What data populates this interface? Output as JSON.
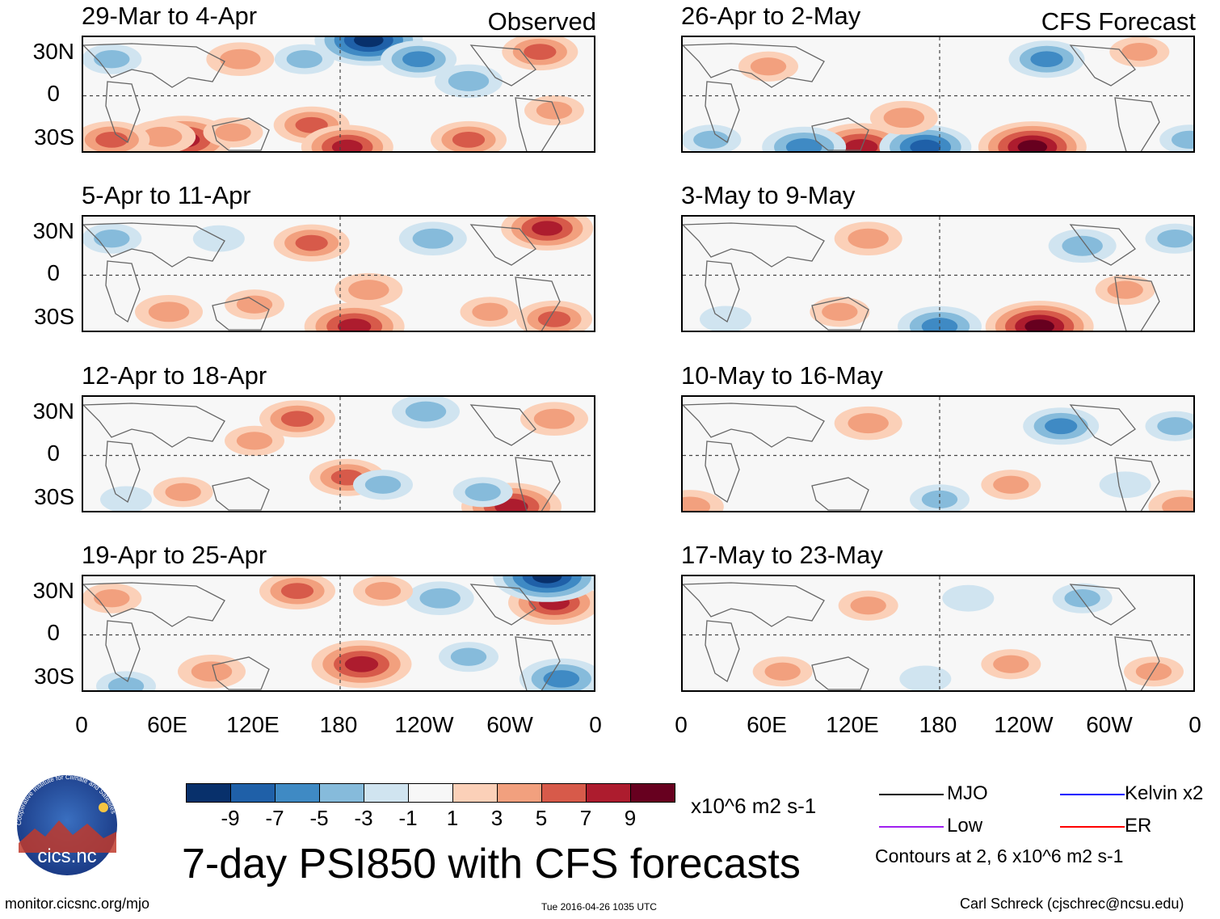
{
  "chart_data": {
    "type": "heatmap",
    "title": "7-day PSI850 with CFS forecasts",
    "variable": "PSI850",
    "units": "x10^6 m2 s-1",
    "colorbar": {
      "ticks": [
        "-9",
        "-7",
        "-5",
        "-3",
        "-1",
        "1",
        "3",
        "5",
        "7",
        "9"
      ],
      "colors": [
        "#08306b",
        "#1f60a8",
        "#3f8ac4",
        "#86bbdb",
        "#d0e4f0",
        "#f7f7f7",
        "#fbd0b8",
        "#f2a07e",
        "#d75a4a",
        "#ad1c2e",
        "#67001f"
      ]
    },
    "lat_ticks": [
      "30N",
      "0",
      "30S"
    ],
    "lon_ticks": [
      "0",
      "60E",
      "120E",
      "180",
      "120W",
      "60W",
      "0"
    ],
    "observed_header": "Observed",
    "forecast_header": "CFS Forecast",
    "observed_panels": [
      {
        "period": "29-Mar to 4-Apr",
        "blobs": [
          {
            "lon": 70,
            "lat": -30,
            "v": 8
          },
          {
            "lon": 55,
            "lat": -28,
            "v": 4
          },
          {
            "lon": 20,
            "lat": -30,
            "v": 5
          },
          {
            "lon": 105,
            "lat": -25,
            "v": 3
          },
          {
            "lon": 160,
            "lat": -20,
            "v": 5
          },
          {
            "lon": 185,
            "lat": -35,
            "v": 7
          },
          {
            "lon": 200,
            "lat": 38,
            "v": -9
          },
          {
            "lon": 235,
            "lat": 25,
            "v": -5
          },
          {
            "lon": 270,
            "lat": 10,
            "v": -4
          },
          {
            "lon": 320,
            "lat": 30,
            "v": 5
          },
          {
            "lon": 330,
            "lat": -10,
            "v": 3
          },
          {
            "lon": 270,
            "lat": -30,
            "v": 5
          },
          {
            "lon": 20,
            "lat": 25,
            "v": -3
          },
          {
            "lon": 110,
            "lat": 25,
            "v": 4
          },
          {
            "lon": 155,
            "lat": 25,
            "v": -3
          }
        ]
      },
      {
        "period": "5-Apr to 11-Apr",
        "blobs": [
          {
            "lon": 190,
            "lat": -35,
            "v": 8
          },
          {
            "lon": 160,
            "lat": 22,
            "v": 5
          },
          {
            "lon": 325,
            "lat": 32,
            "v": 7
          },
          {
            "lon": 330,
            "lat": -30,
            "v": 5
          },
          {
            "lon": 60,
            "lat": -25,
            "v": 4
          },
          {
            "lon": 120,
            "lat": -20,
            "v": 3
          },
          {
            "lon": 245,
            "lat": 25,
            "v": -4
          },
          {
            "lon": 20,
            "lat": 25,
            "v": -3
          },
          {
            "lon": 95,
            "lat": 25,
            "v": -2
          },
          {
            "lon": 200,
            "lat": -10,
            "v": 4
          },
          {
            "lon": 285,
            "lat": -25,
            "v": 3
          }
        ]
      },
      {
        "period": "12-Apr to 18-Apr",
        "blobs": [
          {
            "lon": 150,
            "lat": 25,
            "v": 5
          },
          {
            "lon": 185,
            "lat": -15,
            "v": 5
          },
          {
            "lon": 300,
            "lat": -35,
            "v": 8
          },
          {
            "lon": 240,
            "lat": 30,
            "v": -4
          },
          {
            "lon": 210,
            "lat": -20,
            "v": -3
          },
          {
            "lon": 330,
            "lat": 25,
            "v": 4
          },
          {
            "lon": 70,
            "lat": -25,
            "v": 3
          },
          {
            "lon": 280,
            "lat": -25,
            "v": -3
          },
          {
            "lon": 30,
            "lat": -30,
            "v": -2
          },
          {
            "lon": 120,
            "lat": 10,
            "v": 3
          }
        ]
      },
      {
        "period": "19-Apr to 25-Apr",
        "blobs": [
          {
            "lon": 150,
            "lat": 30,
            "v": 5
          },
          {
            "lon": 195,
            "lat": -20,
            "v": 8
          },
          {
            "lon": 330,
            "lat": 22,
            "v": 7
          },
          {
            "lon": 325,
            "lat": 40,
            "v": -9
          },
          {
            "lon": 335,
            "lat": -30,
            "v": -6
          },
          {
            "lon": 250,
            "lat": 25,
            "v": -4
          },
          {
            "lon": 30,
            "lat": -35,
            "v": -3
          },
          {
            "lon": 90,
            "lat": -25,
            "v": 4
          },
          {
            "lon": 210,
            "lat": 30,
            "v": 3
          },
          {
            "lon": 270,
            "lat": -15,
            "v": -3
          },
          {
            "lon": 20,
            "lat": 25,
            "v": 3
          }
        ]
      }
    ],
    "forecast_panels": [
      {
        "period": "26-Apr to 2-May",
        "blobs": [
          {
            "lon": 125,
            "lat": -35,
            "v": 8
          },
          {
            "lon": 245,
            "lat": -35,
            "v": 9
          },
          {
            "lon": 85,
            "lat": -35,
            "v": -6
          },
          {
            "lon": 170,
            "lat": -35,
            "v": -7
          },
          {
            "lon": 255,
            "lat": 25,
            "v": -5
          },
          {
            "lon": 20,
            "lat": -30,
            "v": -3
          },
          {
            "lon": 155,
            "lat": -15,
            "v": 4
          },
          {
            "lon": 320,
            "lat": 30,
            "v": 3
          },
          {
            "lon": 60,
            "lat": 20,
            "v": 3
          },
          {
            "lon": 355,
            "lat": -30,
            "v": -3
          }
        ]
      },
      {
        "period": "3-May to 9-May",
        "blobs": [
          {
            "lon": 250,
            "lat": -35,
            "v": 9
          },
          {
            "lon": 180,
            "lat": -35,
            "v": -6
          },
          {
            "lon": 130,
            "lat": 25,
            "v": 4
          },
          {
            "lon": 280,
            "lat": 20,
            "v": -4
          },
          {
            "lon": 110,
            "lat": -25,
            "v": 3
          },
          {
            "lon": 310,
            "lat": -10,
            "v": 3
          },
          {
            "lon": 345,
            "lat": 25,
            "v": -3
          },
          {
            "lon": 30,
            "lat": -30,
            "v": -2
          }
        ]
      },
      {
        "period": "10-May to 16-May",
        "blobs": [
          {
            "lon": 130,
            "lat": 22,
            "v": 4
          },
          {
            "lon": 265,
            "lat": 20,
            "v": -5
          },
          {
            "lon": 230,
            "lat": -20,
            "v": 3
          },
          {
            "lon": 180,
            "lat": -30,
            "v": -3
          },
          {
            "lon": 350,
            "lat": -35,
            "v": 4
          },
          {
            "lon": 5,
            "lat": -35,
            "v": 4
          },
          {
            "lon": 345,
            "lat": 20,
            "v": -3
          },
          {
            "lon": 310,
            "lat": -20,
            "v": -2
          }
        ]
      },
      {
        "period": "17-May to 23-May",
        "blobs": [
          {
            "lon": 130,
            "lat": 20,
            "v": 3
          },
          {
            "lon": 330,
            "lat": -25,
            "v": 3
          },
          {
            "lon": 230,
            "lat": -20,
            "v": 3
          },
          {
            "lon": 200,
            "lat": 25,
            "v": -2
          },
          {
            "lon": 280,
            "lat": 25,
            "v": -3
          },
          {
            "lon": 70,
            "lat": -25,
            "v": 3
          },
          {
            "lon": 170,
            "lat": -30,
            "v": -2
          }
        ]
      }
    ]
  },
  "legend": {
    "items": [
      {
        "label": "MJO",
        "color": "#000000"
      },
      {
        "label": "Kelvin x2",
        "color": "#0000ff"
      },
      {
        "label": "Low",
        "color": "#a020f0"
      },
      {
        "label": "ER",
        "color": "#ff0000"
      }
    ],
    "contour_note": "Contours at 2, 6 x10^6 m2 s-1"
  },
  "logo": {
    "text": "cics.nc",
    "ring_text": "Cooperative Institute for Climate and Satellites"
  },
  "footer": {
    "url": "monitor.cicsnc.org/mjo",
    "timestamp": "Tue 2016-04-26 1035 UTC",
    "author": "Carl Schreck (cjschrec@ncsu.edu)"
  }
}
